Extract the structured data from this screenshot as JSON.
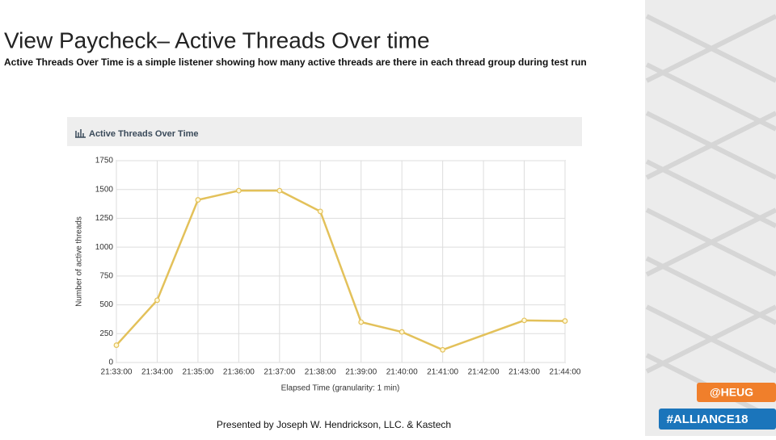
{
  "slide": {
    "title": "View Paycheck– Active Threads Over time",
    "subtitle": "Active Threads Over Time is a simple listener showing how many active threads are there in each thread group during test run",
    "footer": "Presented by Joseph W. Hendrickson, LLC. & Kastech",
    "tags": [
      "@HEUG",
      "#ALLIANCE18"
    ]
  },
  "chart_data": {
    "type": "line",
    "title": "Active Threads Over Time",
    "ylabel": "Number of active threads",
    "xlabel": "Elapsed Time (granularity: 1 min)",
    "xticks": [
      "21:33:00",
      "21:34:00",
      "21:35:00",
      "21:36:00",
      "21:37:00",
      "21:38:00",
      "21:39:00",
      "21:40:00",
      "21:41:00",
      "21:42:00",
      "21:43:00",
      "21:44:00"
    ],
    "x": [
      "21:33:00",
      "21:34:00",
      "21:35:00",
      "21:36:00",
      "21:37:00",
      "21:38:00",
      "21:39:00",
      "21:40:00",
      "21:41:00",
      "21:43:00",
      "21:44:00"
    ],
    "values": [
      150,
      540,
      1410,
      1490,
      1490,
      1310,
      350,
      265,
      110,
      365,
      360
    ],
    "color": "#e3c15a",
    "ylim": [
      0,
      1750
    ],
    "yticks": [
      0,
      250,
      500,
      750,
      1000,
      1250,
      1500,
      1750
    ],
    "grid": true
  }
}
